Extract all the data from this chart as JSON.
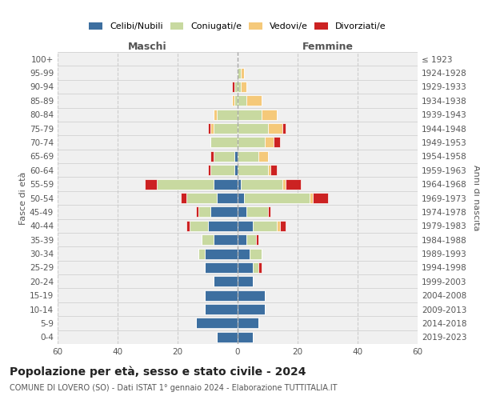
{
  "age_groups": [
    "0-4",
    "5-9",
    "10-14",
    "15-19",
    "20-24",
    "25-29",
    "30-34",
    "35-39",
    "40-44",
    "45-49",
    "50-54",
    "55-59",
    "60-64",
    "65-69",
    "70-74",
    "75-79",
    "80-84",
    "85-89",
    "90-94",
    "95-99",
    "100+"
  ],
  "birth_years": [
    "2019-2023",
    "2014-2018",
    "2009-2013",
    "2004-2008",
    "1999-2003",
    "1994-1998",
    "1989-1993",
    "1984-1988",
    "1979-1983",
    "1974-1978",
    "1969-1973",
    "1964-1968",
    "1959-1963",
    "1954-1958",
    "1949-1953",
    "1944-1948",
    "1939-1943",
    "1934-1938",
    "1929-1933",
    "1924-1928",
    "≤ 1923"
  ],
  "maschi": {
    "celibi": [
      7,
      14,
      11,
      11,
      8,
      11,
      11,
      8,
      10,
      9,
      7,
      8,
      1,
      1,
      0,
      0,
      0,
      0,
      0,
      0,
      0
    ],
    "coniugati": [
      0,
      0,
      0,
      0,
      0,
      0,
      2,
      4,
      6,
      4,
      10,
      19,
      8,
      7,
      9,
      8,
      7,
      1,
      1,
      0,
      0
    ],
    "vedovi": [
      0,
      0,
      0,
      0,
      0,
      0,
      0,
      0,
      0,
      0,
      0,
      0,
      0,
      0,
      0,
      1,
      1,
      1,
      0,
      0,
      0
    ],
    "divorziati": [
      0,
      0,
      0,
      0,
      0,
      0,
      0,
      0,
      1,
      1,
      2,
      4,
      1,
      1,
      0,
      1,
      0,
      0,
      1,
      0,
      0
    ]
  },
  "femmine": {
    "nubili": [
      5,
      7,
      9,
      9,
      5,
      5,
      4,
      3,
      5,
      3,
      2,
      1,
      0,
      0,
      0,
      0,
      0,
      0,
      0,
      0,
      0
    ],
    "coniugate": [
      0,
      0,
      0,
      0,
      0,
      2,
      4,
      3,
      8,
      7,
      22,
      14,
      10,
      7,
      9,
      10,
      8,
      3,
      1,
      1,
      0
    ],
    "vedove": [
      0,
      0,
      0,
      0,
      0,
      0,
      0,
      0,
      1,
      0,
      1,
      1,
      1,
      3,
      3,
      5,
      5,
      5,
      2,
      1,
      0
    ],
    "divorziate": [
      0,
      0,
      0,
      0,
      0,
      1,
      0,
      1,
      2,
      1,
      5,
      5,
      2,
      0,
      2,
      1,
      0,
      0,
      0,
      0,
      0
    ]
  },
  "colors": {
    "celibi_nubili": "#3d6fa0",
    "coniugati": "#c8d9a0",
    "vedovi": "#f5c97a",
    "divorziati": "#cc2222"
  },
  "xlim": 60,
  "title": "Popolazione per età, sesso e stato civile - 2024",
  "subtitle": "COMUNE DI LOVERO (SO) - Dati ISTAT 1° gennaio 2024 - Elaborazione TUTTITALIA.IT",
  "xlabel_left": "Maschi",
  "xlabel_right": "Femmine",
  "ylabel_left": "Fasce di età",
  "ylabel_right": "Anni di nascita",
  "legend_labels": [
    "Celibi/Nubili",
    "Coniugati/e",
    "Vedovi/e",
    "Divorziati/e"
  ],
  "background_color": "#ffffff",
  "bar_height": 0.75
}
